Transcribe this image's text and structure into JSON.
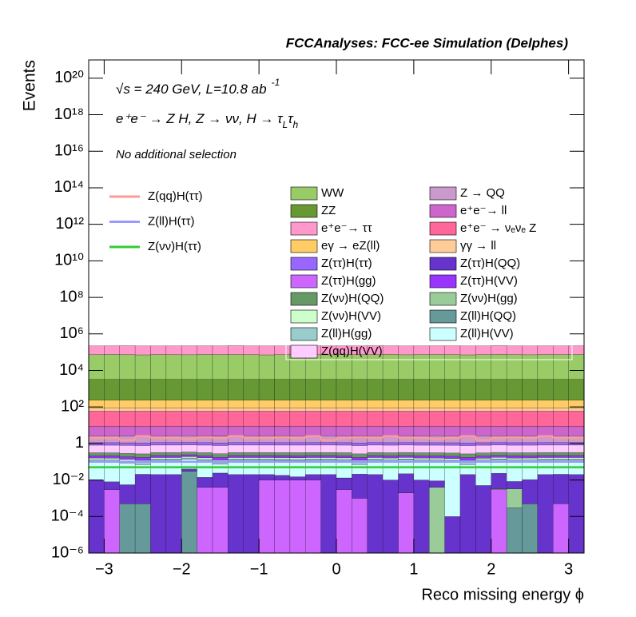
{
  "chart_data": {
    "type": "stacked_histogram",
    "title": "FCCAnalyses: FCC-ee Simulation (Delphes)",
    "annotations": {
      "energy": "√s = 240 GeV, L=10.8 ab",
      "energy_exponent": "-1",
      "process": [
        "e⁺e⁻ → Z H, Z → νν, H → τ",
        "L",
        "τ",
        "h"
      ],
      "selection": "No additional selection"
    },
    "x_label": "Reco missing energy ϕ",
    "y_label": "Events",
    "ylog": true,
    "xlim": [
      -3.2,
      3.2
    ],
    "ylim": [
      1e-06,
      1e+21
    ],
    "xticks": [
      {
        "value": -3,
        "label": "−3"
      },
      {
        "value": -2,
        "label": "−2"
      },
      {
        "value": -1,
        "label": "−1"
      },
      0,
      1,
      2,
      3
    ],
    "yticks": [
      {
        "value": 1e-06,
        "label": "10⁻⁶"
      },
      {
        "value": 0.0001,
        "label": "10⁻⁴"
      },
      {
        "value": 0.01,
        "label": "10⁻²"
      },
      1,
      {
        "value": 100,
        "label": "10²"
      },
      {
        "value": 10000.0,
        "label": "10⁴"
      },
      {
        "value": 1000000.0,
        "label": "10⁶"
      },
      {
        "value": 100000000.0,
        "label": "10⁸"
      },
      {
        "value": 10000000000.0,
        "label": "10¹⁰"
      },
      {
        "value": 1000000000000.0,
        "label": "10¹²"
      },
      {
        "value": 100000000000000.0,
        "label": "10¹⁴"
      },
      {
        "value": 1e+16,
        "label": "10¹⁶"
      },
      {
        "value": 1e+18,
        "label": "10¹⁸"
      },
      {
        "value": 1e+20,
        "label": "10²⁰"
      }
    ],
    "bins": [
      -3.2,
      -3.0,
      -2.8,
      -2.6,
      -2.4,
      -2.2,
      -2.0,
      -1.8,
      -1.6,
      -1.4,
      -1.2,
      -1.0,
      -0.8,
      -0.6,
      -0.4,
      -0.2,
      0,
      0.2,
      0.4,
      0.6,
      0.8,
      1.0,
      1.2,
      1.4,
      1.6,
      1.8,
      2.0,
      2.2,
      2.4,
      2.6,
      2.8,
      3.0,
      3.2
    ],
    "lines": [
      {
        "name": "Z(qq)H(ττ)",
        "color": "#ff9999",
        "values": [
          2,
          2,
          1.5,
          2.5,
          2,
          2,
          1.8,
          2.2,
          2,
          2.5,
          2,
          2,
          2.2,
          2,
          2.5,
          1.5,
          2,
          2.2,
          2,
          2.5,
          2,
          2,
          1.8,
          2,
          2.5,
          1.5,
          2,
          2.2,
          2,
          2.5,
          2,
          2
        ]
      },
      {
        "name": "Z(ll)H(ττ)",
        "color": "#9999ff",
        "values": [
          0.1,
          0.1,
          0.1,
          0.1,
          0.1,
          0.1,
          0.1,
          0.1,
          0.1,
          0.1,
          0.1,
          0.1,
          0.1,
          0.1,
          0.1,
          0.1,
          0.1,
          0.1,
          0.1,
          0.1,
          0.1,
          0.1,
          0.1,
          0.1,
          0.1,
          0.1,
          0.1,
          0.1,
          0.1,
          0.1,
          0.1,
          0.1
        ]
      },
      {
        "name": "Z(νν)H(ττ)",
        "color": "#33cc33",
        "values": [
          0.05,
          0.05,
          0.05,
          0.05,
          0.05,
          0.05,
          0.05,
          0.05,
          0.05,
          0.05,
          0.05,
          0.05,
          0.05,
          0.05,
          0.05,
          0.05,
          0.05,
          0.05,
          0.05,
          0.05,
          0.05,
          0.05,
          0.05,
          0.05,
          0.05,
          0.05,
          0.05,
          0.05,
          0.05,
          0.05,
          0.05,
          0.05
        ]
      }
    ],
    "series": [
      {
        "name": "WW",
        "color": "#99cc66",
        "values": [
          70000,
          72000,
          70000,
          68000,
          71000,
          70000,
          69000,
          72000,
          70000,
          71000,
          70000,
          68000,
          70000,
          72000,
          70000,
          69000,
          71000,
          70000,
          70000,
          72000,
          69000,
          70000,
          71000,
          70000,
          68000,
          70000,
          72000,
          70000,
          69000,
          71000,
          70000,
          72000
        ]
      },
      {
        "name": "Z → QQ",
        "color": "#cc99cc",
        "values": [
          1.5,
          1.5,
          1.5,
          1.5,
          1.5,
          1.5,
          1.5,
          1.5,
          1.5,
          1.5,
          1.5,
          1.5,
          1.5,
          1.5,
          1.5,
          1.5,
          1.5,
          1.5,
          1.5,
          1.5,
          1.5,
          1.5,
          1.5,
          1.5,
          1.5,
          1.5,
          1.5,
          1.5,
          1.5,
          1.5,
          1.5,
          1.5
        ]
      },
      {
        "name": "ZZ",
        "color": "#669933",
        "values": [
          3000,
          3000,
          3000,
          3000,
          3000,
          3000,
          3000,
          3000,
          3000,
          3000,
          3000,
          3000,
          3000,
          3000,
          3000,
          3000,
          3000,
          3000,
          3000,
          3000,
          3000,
          3000,
          3000,
          3000,
          3000,
          3000,
          3000,
          3000,
          3000,
          3000,
          3000,
          3000
        ]
      },
      {
        "name": "e⁺e⁻→ ll",
        "color": "#cc66cc",
        "values": [
          6,
          6,
          6,
          6,
          6,
          6,
          6,
          6,
          6,
          6,
          6,
          6,
          6,
          6,
          6,
          6,
          6,
          6,
          6,
          6,
          6,
          6,
          6,
          6,
          6,
          6,
          6,
          6,
          6,
          6,
          6,
          6
        ]
      },
      {
        "name": "e⁺e⁻→ ττ",
        "color": "#ff99cc",
        "values": [
          150000,
          150000,
          155000,
          150000,
          148000,
          150000,
          152000,
          150000,
          150000,
          155000,
          150000,
          150000,
          148000,
          150000,
          152000,
          150000,
          150000,
          150000,
          155000,
          150000,
          148000,
          150000,
          150000,
          152000,
          150000,
          150000,
          155000,
          150000,
          148000,
          150000,
          150000,
          150000
        ]
      },
      {
        "name": "e⁺e⁻ → νₑνₑ Z",
        "color": "#ff6699",
        "values": [
          50,
          50,
          50,
          50,
          50,
          50,
          50,
          50,
          50,
          50,
          50,
          50,
          50,
          50,
          50,
          50,
          50,
          50,
          50,
          50,
          50,
          50,
          50,
          50,
          50,
          50,
          50,
          50,
          50,
          50,
          50,
          50
        ]
      },
      {
        "name": "eγ → eZ(ll)",
        "color": "#ffcc66",
        "values": [
          150,
          150,
          150,
          150,
          150,
          150,
          150,
          150,
          150,
          150,
          150,
          150,
          150,
          150,
          150,
          150,
          150,
          150,
          150,
          150,
          150,
          150,
          150,
          150,
          150,
          150,
          150,
          150,
          150,
          150,
          150,
          150
        ]
      },
      {
        "name": "γγ → ll",
        "color": "#ffcc99",
        "values": [
          30,
          30,
          30,
          30,
          30,
          30,
          30,
          30,
          30,
          30,
          30,
          30,
          30,
          30,
          30,
          30,
          30,
          30,
          30,
          30,
          30,
          30,
          30,
          30,
          30,
          30,
          30,
          30,
          30,
          30,
          30,
          30
        ]
      },
      {
        "name": "Z(ττ)H(ττ)",
        "color": "#9966ff",
        "values": [
          0.3,
          0.3,
          0.3,
          0.3,
          0.3,
          0.3,
          0.3,
          0.3,
          0.3,
          0.3,
          0.3,
          0.3,
          0.3,
          0.3,
          0.3,
          0.3,
          0.3,
          0.3,
          0.3,
          0.3,
          0.3,
          0.3,
          0.3,
          0.3,
          0.3,
          0.3,
          0.3,
          0.3,
          0.3,
          0.3,
          0.3,
          0.3
        ]
      },
      {
        "name": "Z(ττ)H(QQ)",
        "color": "#6633cc",
        "values": [
          0.01,
          0.005,
          0.005,
          0.02,
          0.02,
          0.02,
          0.01,
          0.01,
          0.02,
          0.02,
          0.02,
          0.01,
          0.008,
          0.005,
          0.01,
          0.02,
          0.01,
          0.02,
          0.02,
          0.01,
          0.02,
          0.01,
          0.005,
          0.0001,
          0.02,
          0.005,
          0.02,
          0.005,
          0.01,
          0.02,
          0.02,
          0.02
        ]
      },
      {
        "name": "Z(ττ)H(gg)",
        "color": "#cc66ff",
        "values": [
          0,
          0.003,
          0,
          0,
          0,
          0,
          0,
          0.004,
          0.004,
          0,
          0,
          0.01,
          0.01,
          0.01,
          0.01,
          0,
          0.003,
          0.001,
          0,
          0,
          0.002,
          0,
          0,
          0,
          0,
          0,
          0.003,
          0,
          0,
          0,
          0.0005,
          0
        ]
      },
      {
        "name": "Z(ττ)H(VV)",
        "color": "#9933ff",
        "values": [
          0.05,
          0.05,
          0.05,
          0.05,
          0.05,
          0.05,
          0.05,
          0.05,
          0.05,
          0.05,
          0.05,
          0.05,
          0.05,
          0.05,
          0.05,
          0.05,
          0.05,
          0.05,
          0.05,
          0.05,
          0.05,
          0.05,
          0.05,
          0.05,
          0.05,
          0.05,
          0.05,
          0.05,
          0.05,
          0.05,
          0.05,
          0.05
        ]
      },
      {
        "name": "Z(νν)H(QQ)",
        "color": "#669966",
        "values": [
          0.1,
          0.1,
          0.1,
          0.1,
          0.1,
          0.1,
          0.1,
          0.1,
          0.1,
          0.1,
          0.1,
          0.1,
          0.1,
          0.1,
          0.1,
          0.1,
          0.1,
          0.1,
          0.1,
          0.1,
          0.1,
          0.1,
          0.1,
          0.1,
          0.1,
          0.1,
          0.1,
          0.1,
          0.1,
          0.1,
          0.1,
          0.1
        ]
      },
      {
        "name": "Z(νν)H(gg)",
        "color": "#99cc99",
        "values": [
          0,
          0,
          0,
          0,
          0,
          0,
          0,
          0,
          0,
          0,
          0,
          0,
          0,
          0,
          0,
          0,
          0,
          0,
          0,
          0,
          0,
          0,
          0.004,
          0,
          0,
          0,
          0.0003,
          0.003,
          0,
          0,
          0,
          0
        ]
      },
      {
        "name": "Z(νν)H(VV)",
        "color": "#ccffcc",
        "values": [
          0.03,
          0.03,
          0.03,
          0.03,
          0.03,
          0.03,
          0.03,
          0.03,
          0.03,
          0.03,
          0.03,
          0.03,
          0.03,
          0.03,
          0.03,
          0.03,
          0.03,
          0.03,
          0.03,
          0.03,
          0.03,
          0.03,
          0.03,
          0.03,
          0.03,
          0.03,
          0.03,
          0.03,
          0.03,
          0.03,
          0.03,
          0.03
        ]
      },
      {
        "name": "Z(ll)H(QQ)",
        "color": "#669999",
        "values": [
          0,
          0,
          0.0005,
          0.0005,
          0,
          0,
          0.03,
          0,
          0,
          0,
          0,
          0,
          0,
          0,
          0,
          0,
          0,
          0,
          0,
          0,
          5e-05,
          0,
          0,
          0,
          0,
          0,
          0,
          0.0003,
          0.0005,
          0,
          0,
          0
        ]
      },
      {
        "name": "Z(ll)H(gg)",
        "color": "#99cccc",
        "values": [
          0.02,
          0.02,
          0.02,
          0.02,
          0.02,
          0.02,
          0.02,
          0.02,
          0.02,
          0.02,
          0.02,
          0.02,
          0.02,
          0.02,
          0.02,
          0.02,
          0.02,
          0.02,
          0.02,
          0.02,
          0.02,
          0.02,
          0.02,
          0.02,
          0.02,
          0.02,
          0.02,
          0.02,
          0.02,
          0.02,
          0.02,
          0.02
        ]
      },
      {
        "name": "Z(ll)H(VV)",
        "color": "#ccffff",
        "values": [
          0.1,
          0.1,
          0.08,
          0.05,
          0.1,
          0.1,
          0.1,
          0.1,
          0.05,
          0.1,
          0.1,
          0.1,
          0.1,
          0.1,
          0.1,
          0.1,
          0.1,
          0.05,
          0.1,
          0.1,
          0.1,
          0.1,
          0.1,
          0.1,
          0.05,
          0.1,
          0.1,
          0.1,
          0.1,
          0.1,
          0.1,
          0.1
        ]
      },
      {
        "name": "Z(qq)H(VV)",
        "color": "#ffccff",
        "values": [
          0.5,
          0.5,
          0.5,
          0.5,
          0.5,
          0.5,
          0.5,
          0.5,
          0.5,
          0.5,
          0.5,
          0.5,
          0.5,
          0.5,
          0.5,
          0.5,
          0.5,
          0.5,
          0.5,
          0.5,
          0.5,
          0.5,
          0.5,
          0.5,
          0.5,
          0.5,
          0.5,
          0.5,
          0.5,
          0.5,
          0.5,
          0.5
        ]
      }
    ]
  }
}
